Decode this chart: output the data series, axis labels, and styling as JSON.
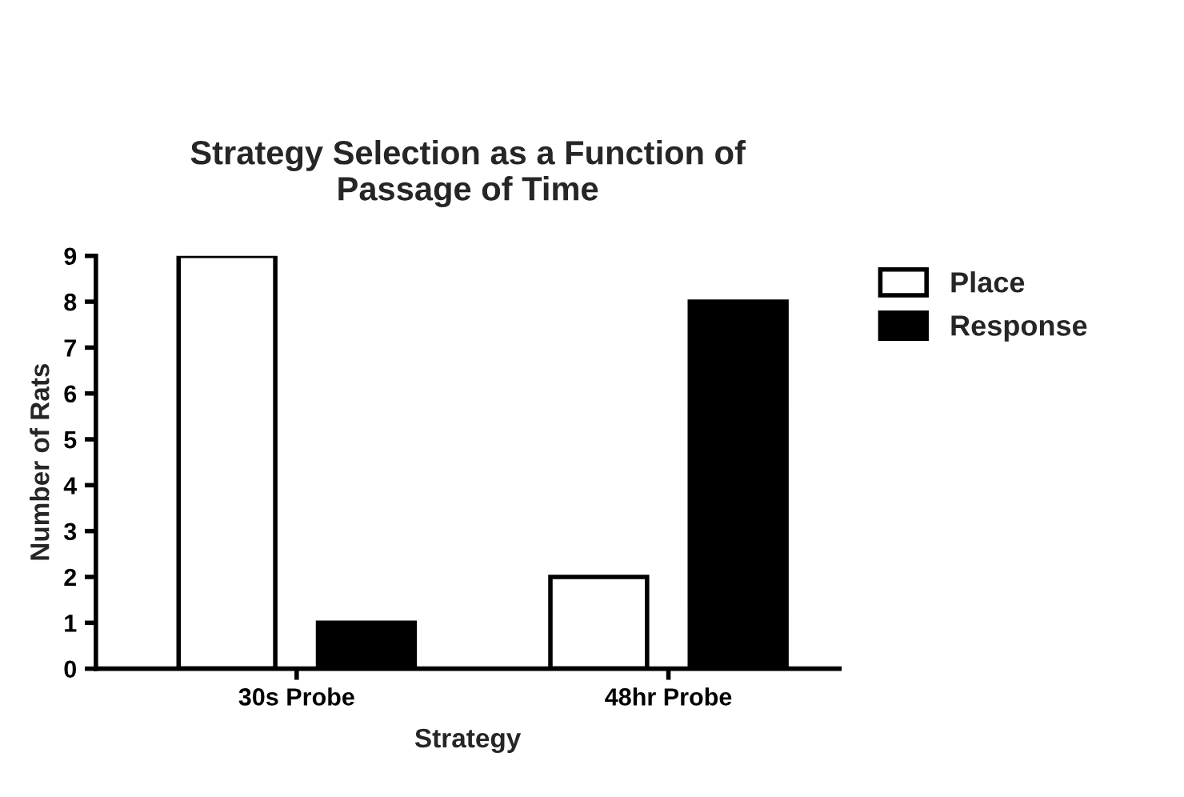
{
  "chart_data": {
    "type": "bar",
    "title": "Strategy Selection as a Function of\nPassage of Time",
    "xlabel": "Strategy",
    "ylabel": "Number of Rats",
    "categories": [
      "30s Probe",
      "48hr Probe"
    ],
    "series": [
      {
        "name": "Place",
        "color": "#ffffff",
        "values": [
          9,
          2
        ]
      },
      {
        "name": "Response",
        "color": "#000000",
        "values": [
          1,
          8
        ]
      }
    ],
    "ylim": [
      0,
      9
    ],
    "yticks": [
      0,
      1,
      2,
      3,
      4,
      5,
      6,
      7,
      8,
      9
    ],
    "grid": false,
    "legend": "top right"
  }
}
